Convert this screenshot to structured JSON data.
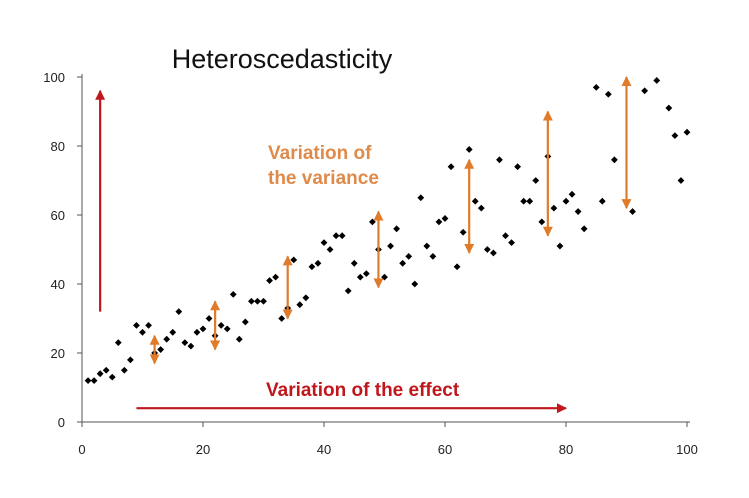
{
  "chart_data": {
    "type": "scatter",
    "title": "Heteroscedasticity",
    "xlabel": "",
    "ylabel": "",
    "xlim": [
      0,
      100
    ],
    "ylim": [
      0,
      100
    ],
    "xticks": [
      "0",
      "20",
      "40",
      "60",
      "80",
      "100"
    ],
    "yticks": [
      "0",
      "20",
      "40",
      "60",
      "80",
      "100"
    ],
    "grid": false,
    "colors": {
      "points": "#000000",
      "effect_arrow": "#c0171d",
      "variance_arrows": "#e07b2a",
      "axis": "#555555"
    },
    "annotations": {
      "variance_label": [
        "Variation of",
        "the variance"
      ],
      "effect_label": "Variation of the effect"
    },
    "effect_arrows": [
      {
        "from": [
          3,
          32
        ],
        "to": [
          3,
          96
        ]
      },
      {
        "from": [
          9,
          4
        ],
        "to": [
          80,
          4
        ]
      }
    ],
    "variance_arrows": [
      {
        "x": 12,
        "y1": 17,
        "y2": 25
      },
      {
        "x": 22,
        "y1": 21,
        "y2": 35
      },
      {
        "x": 34,
        "y1": 30,
        "y2": 48
      },
      {
        "x": 49,
        "y1": 39,
        "y2": 61
      },
      {
        "x": 64,
        "y1": 49,
        "y2": 76
      },
      {
        "x": 77,
        "y1": 54,
        "y2": 90
      },
      {
        "x": 90,
        "y1": 62,
        "y2": 100
      }
    ],
    "points": [
      [
        1,
        12
      ],
      [
        2,
        12
      ],
      [
        3,
        14
      ],
      [
        4,
        15
      ],
      [
        5,
        13
      ],
      [
        6,
        23
      ],
      [
        7,
        15
      ],
      [
        8,
        18
      ],
      [
        9,
        28
      ],
      [
        10,
        26
      ],
      [
        11,
        28
      ],
      [
        12,
        20
      ],
      [
        13,
        21
      ],
      [
        14,
        24
      ],
      [
        15,
        26
      ],
      [
        16,
        32
      ],
      [
        17,
        23
      ],
      [
        18,
        22
      ],
      [
        19,
        26
      ],
      [
        20,
        27
      ],
      [
        21,
        30
      ],
      [
        22,
        25
      ],
      [
        23,
        28
      ],
      [
        24,
        27
      ],
      [
        25,
        37
      ],
      [
        26,
        24
      ],
      [
        27,
        29
      ],
      [
        28,
        35
      ],
      [
        29,
        35
      ],
      [
        30,
        35
      ],
      [
        31,
        41
      ],
      [
        32,
        42
      ],
      [
        33,
        30
      ],
      [
        34,
        33
      ],
      [
        35,
        47
      ],
      [
        36,
        34
      ],
      [
        37,
        36
      ],
      [
        38,
        45
      ],
      [
        39,
        46
      ],
      [
        40,
        52
      ],
      [
        41,
        50
      ],
      [
        42,
        54
      ],
      [
        43,
        54
      ],
      [
        44,
        38
      ],
      [
        45,
        46
      ],
      [
        46,
        42
      ],
      [
        47,
        43
      ],
      [
        48,
        58
      ],
      [
        49,
        50
      ],
      [
        50,
        42
      ],
      [
        51,
        51
      ],
      [
        52,
        56
      ],
      [
        53,
        46
      ],
      [
        54,
        48
      ],
      [
        55,
        40
      ],
      [
        56,
        65
      ],
      [
        57,
        51
      ],
      [
        58,
        48
      ],
      [
        59,
        58
      ],
      [
        60,
        59
      ],
      [
        61,
        74
      ],
      [
        62,
        45
      ],
      [
        63,
        55
      ],
      [
        64,
        79
      ],
      [
        65,
        64
      ],
      [
        66,
        62
      ],
      [
        67,
        50
      ],
      [
        68,
        49
      ],
      [
        69,
        76
      ],
      [
        70,
        54
      ],
      [
        71,
        52
      ],
      [
        72,
        74
      ],
      [
        73,
        64
      ],
      [
        74,
        64
      ],
      [
        75,
        70
      ],
      [
        76,
        58
      ],
      [
        77,
        77
      ],
      [
        78,
        62
      ],
      [
        79,
        51
      ],
      [
        80,
        64
      ],
      [
        81,
        66
      ],
      [
        82,
        61
      ],
      [
        83,
        56
      ],
      [
        85,
        97
      ],
      [
        86,
        64
      ],
      [
        87,
        95
      ],
      [
        88,
        76
      ],
      [
        91,
        61
      ],
      [
        93,
        96
      ],
      [
        95,
        99
      ],
      [
        97,
        91
      ],
      [
        98,
        83
      ],
      [
        99,
        70
      ],
      [
        100,
        84
      ]
    ]
  }
}
